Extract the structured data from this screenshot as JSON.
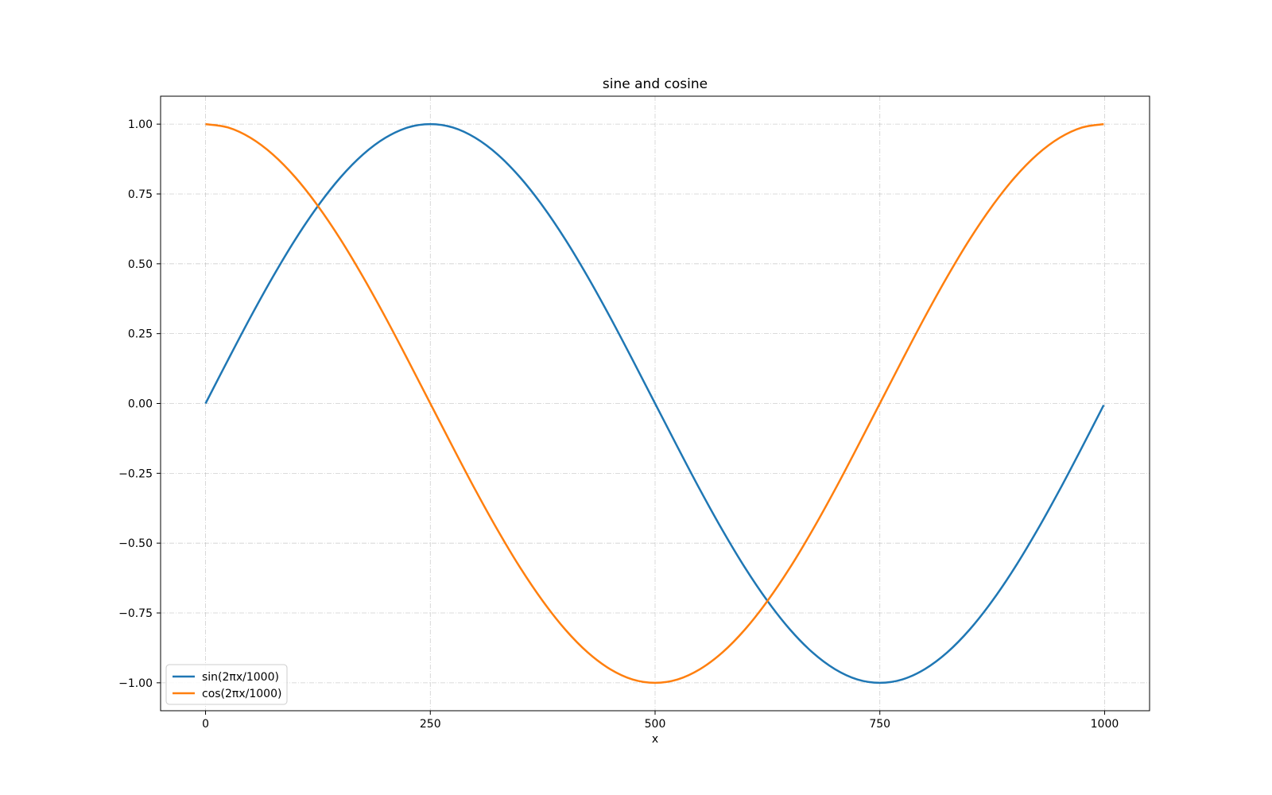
{
  "chart_data": {
    "type": "line",
    "title": "sine and cosine",
    "xlabel": "x",
    "ylabel": "",
    "xlim": [
      -50,
      1050
    ],
    "ylim": [
      -1.1,
      1.1
    ],
    "xticks": [
      0,
      250,
      500,
      750,
      1000
    ],
    "xtick_labels": [
      "0",
      "250",
      "500",
      "750",
      "1000"
    ],
    "yticks": [
      1.0,
      0.75,
      0.5,
      0.25,
      0.0,
      -0.25,
      -0.5,
      -0.75,
      -1.0
    ],
    "ytick_labels": [
      "1.00",
      "0.75",
      "0.50",
      "0.25",
      "0.00",
      "−0.25",
      "−0.50",
      "−0.75",
      "−1.00"
    ],
    "grid": true,
    "legend_position": "bottom-left",
    "x": [
      0,
      25,
      50,
      75,
      100,
      125,
      150,
      175,
      200,
      225,
      250,
      275,
      300,
      325,
      350,
      375,
      400,
      425,
      450,
      475,
      500,
      525,
      550,
      575,
      600,
      625,
      650,
      675,
      700,
      725,
      750,
      775,
      800,
      825,
      850,
      875,
      900,
      925,
      950,
      975,
      999
    ],
    "series": [
      {
        "name": "sin(2πx/1000)",
        "color": "#1f77b4",
        "values": [
          0.0,
          0.156,
          0.309,
          0.454,
          0.588,
          0.707,
          0.809,
          0.891,
          0.951,
          0.988,
          1.0,
          0.988,
          0.951,
          0.891,
          0.809,
          0.707,
          0.588,
          0.454,
          0.309,
          0.156,
          0.0,
          -0.156,
          -0.309,
          -0.454,
          -0.588,
          -0.707,
          -0.809,
          -0.891,
          -0.951,
          -0.988,
          -1.0,
          -0.988,
          -0.951,
          -0.891,
          -0.809,
          -0.707,
          -0.588,
          -0.454,
          -0.309,
          -0.156,
          -0.006
        ]
      },
      {
        "name": "cos(2πx/1000)",
        "color": "#ff7f0e",
        "values": [
          1.0,
          0.988,
          0.951,
          0.891,
          0.809,
          0.707,
          0.588,
          0.454,
          0.309,
          0.156,
          0.0,
          -0.156,
          -0.309,
          -0.454,
          -0.588,
          -0.707,
          -0.809,
          -0.891,
          -0.951,
          -0.988,
          -1.0,
          -0.988,
          -0.951,
          -0.891,
          -0.809,
          -0.707,
          -0.588,
          -0.454,
          -0.309,
          -0.156,
          0.0,
          0.156,
          0.309,
          0.454,
          0.588,
          0.707,
          0.809,
          0.891,
          0.951,
          0.988,
          1.0
        ]
      }
    ]
  }
}
